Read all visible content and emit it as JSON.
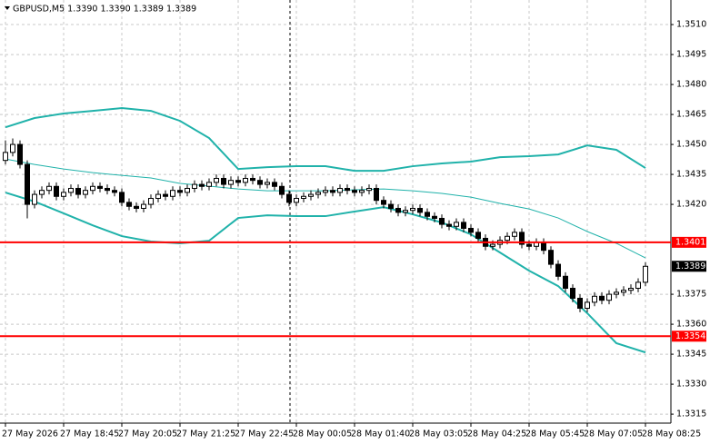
{
  "chart_data": {
    "type": "candlestick",
    "title": "GBPUSD,M5  1.3390 1.3390 1.3389 1.3389",
    "open": [
      1.3442,
      1.3446,
      1.345,
      1.344,
      1.342,
      1.3425,
      1.3427,
      1.3429,
      1.3424,
      1.3426,
      1.3428,
      1.3425,
      1.3427,
      1.3429,
      1.3428,
      1.3427,
      1.3426,
      1.3421,
      1.3419,
      1.3418,
      1.342,
      1.3423,
      1.3425,
      1.3424,
      1.3427,
      1.3426,
      1.3428,
      1.343,
      1.3429,
      1.3431,
      1.3433,
      1.343,
      1.3432,
      1.3431,
      1.3433,
      1.3432,
      1.343,
      1.3431,
      1.3429,
      1.3425,
      1.3421,
      1.3423,
      1.3424,
      1.3425,
      1.3426,
      1.3427,
      1.3426,
      1.3428,
      1.3427,
      1.3426,
      1.3427,
      1.3428,
      1.3422,
      1.342,
      1.3418,
      1.3416,
      1.3417,
      1.3418,
      1.3416,
      1.3414,
      1.3413,
      1.341,
      1.3409,
      1.3411,
      1.3408,
      1.3406,
      1.3403,
      1.3399,
      1.34,
      1.3402,
      1.3404,
      1.3406,
      1.34,
      1.3399,
      1.3401,
      1.3397,
      1.339,
      1.3384,
      1.3378,
      1.3373,
      1.3368,
      1.3371,
      1.3374,
      1.3372,
      1.3375,
      1.3376,
      1.3377,
      1.3378,
      1.3381
    ],
    "high": [
      1.3452,
      1.3453,
      1.3452,
      1.3442,
      1.3427,
      1.3429,
      1.3431,
      1.3431,
      1.3428,
      1.343,
      1.343,
      1.3429,
      1.3431,
      1.3431,
      1.343,
      1.3429,
      1.3428,
      1.3423,
      1.3421,
      1.3422,
      1.3425,
      1.3427,
      1.3427,
      1.3429,
      1.3429,
      1.343,
      1.3432,
      1.3432,
      1.3433,
      1.3435,
      1.3435,
      1.3434,
      1.3434,
      1.3435,
      1.3435,
      1.3434,
      1.3433,
      1.3433,
      1.3431,
      1.3427,
      1.3425,
      1.3426,
      1.3427,
      1.3428,
      1.3429,
      1.3429,
      1.343,
      1.343,
      1.3429,
      1.3429,
      1.343,
      1.343,
      1.3424,
      1.3422,
      1.342,
      1.3419,
      1.342,
      1.342,
      1.3418,
      1.3416,
      1.3415,
      1.3412,
      1.3413,
      1.3413,
      1.341,
      1.3408,
      1.3405,
      1.3402,
      1.3404,
      1.3406,
      1.3408,
      1.3408,
      1.3402,
      1.3403,
      1.3403,
      1.3399,
      1.3392,
      1.3386,
      1.338,
      1.3375,
      1.3373,
      1.3376,
      1.3376,
      1.3377,
      1.3378,
      1.3379,
      1.338,
      1.3383,
      1.3391
    ],
    "low": [
      1.344,
      1.3444,
      1.3438,
      1.3413,
      1.3418,
      1.3423,
      1.3425,
      1.3422,
      1.3422,
      1.3424,
      1.3423,
      1.3423,
      1.3425,
      1.3426,
      1.3425,
      1.3424,
      1.3419,
      1.3417,
      1.3416,
      1.3416,
      1.3418,
      1.3421,
      1.3422,
      1.3422,
      1.3424,
      1.3424,
      1.3426,
      1.3427,
      1.3427,
      1.3429,
      1.3428,
      1.3428,
      1.3429,
      1.3429,
      1.343,
      1.3428,
      1.3428,
      1.3427,
      1.3423,
      1.3419,
      1.3419,
      1.3421,
      1.3422,
      1.3423,
      1.3424,
      1.3424,
      1.3424,
      1.3425,
      1.3424,
      1.3424,
      1.3425,
      1.342,
      1.3418,
      1.3416,
      1.3414,
      1.3414,
      1.3415,
      1.3414,
      1.3412,
      1.3411,
      1.3408,
      1.3407,
      1.3407,
      1.3406,
      1.3404,
      1.3401,
      1.3397,
      1.3397,
      1.3398,
      1.34,
      1.3402,
      1.3398,
      1.3397,
      1.3397,
      1.3395,
      1.3388,
      1.3382,
      1.3376,
      1.3371,
      1.3366,
      1.3366,
      1.3369,
      1.337,
      1.337,
      1.3373,
      1.3374,
      1.3375,
      1.3376,
      1.3379
    ],
    "close": [
      1.3446,
      1.345,
      1.344,
      1.342,
      1.3425,
      1.3427,
      1.3429,
      1.3424,
      1.3426,
      1.3428,
      1.3425,
      1.3427,
      1.3429,
      1.3428,
      1.3427,
      1.3426,
      1.3421,
      1.3419,
      1.3418,
      1.342,
      1.3423,
      1.3425,
      1.3424,
      1.3427,
      1.3426,
      1.3428,
      1.343,
      1.3429,
      1.3431,
      1.3433,
      1.343,
      1.3432,
      1.3431,
      1.3433,
      1.3432,
      1.343,
      1.3431,
      1.3429,
      1.3425,
      1.3421,
      1.3423,
      1.3424,
      1.3425,
      1.3426,
      1.3427,
      1.3426,
      1.3428,
      1.3427,
      1.3426,
      1.3427,
      1.3428,
      1.3422,
      1.342,
      1.3418,
      1.3416,
      1.3417,
      1.3418,
      1.3416,
      1.3414,
      1.3413,
      1.341,
      1.3409,
      1.3411,
      1.3408,
      1.3406,
      1.3403,
      1.3399,
      1.34,
      1.3402,
      1.3404,
      1.3406,
      1.34,
      1.3399,
      1.3401,
      1.3397,
      1.339,
      1.3384,
      1.3378,
      1.3373,
      1.3368,
      1.3371,
      1.3374,
      1.3372,
      1.3375,
      1.3376,
      1.3377,
      1.3378,
      1.3381,
      1.3389
    ],
    "bull_color": "#ffffff",
    "bear_color": "#000000",
    "bands": [
      {
        "color": "#20b2aa",
        "width": 2,
        "x": [
          0,
          4,
          8,
          12,
          16,
          20,
          24,
          28,
          32,
          36,
          40,
          44,
          48,
          52,
          56,
          60,
          64,
          68,
          72,
          76,
          80,
          84,
          88
        ],
        "values": [
          1.34586,
          1.34632,
          1.34655,
          1.34668,
          1.34682,
          1.34668,
          1.34618,
          1.34532,
          1.34377,
          1.34386,
          1.34391,
          1.34391,
          1.34368,
          1.34368,
          1.34391,
          1.34405,
          1.34414,
          1.34436,
          1.34441,
          1.3445,
          1.34495,
          1.34473,
          1.34382
        ]
      },
      {
        "color": "#20b2aa",
        "width": 1,
        "x": [
          0,
          4,
          8,
          12,
          16,
          20,
          24,
          28,
          32,
          36,
          40,
          44,
          48,
          52,
          56,
          60,
          64,
          68,
          72,
          76,
          80,
          84,
          88
        ],
        "values": [
          1.34427,
          1.344,
          1.34377,
          1.34359,
          1.34345,
          1.34332,
          1.34305,
          1.34291,
          1.34277,
          1.34268,
          1.34268,
          1.34268,
          1.34273,
          1.34277,
          1.34268,
          1.34255,
          1.34236,
          1.34205,
          1.34177,
          1.34132,
          1.34064,
          1.34005,
          1.33932
        ]
      },
      {
        "color": "#20b2aa",
        "width": 2,
        "x": [
          0,
          4,
          8,
          12,
          16,
          20,
          24,
          28,
          32,
          36,
          40,
          44,
          48,
          52,
          56,
          60,
          64,
          68,
          72,
          76,
          80,
          84,
          88
        ],
        "values": [
          1.34259,
          1.34214,
          1.34155,
          1.34095,
          1.34041,
          1.34014,
          1.34005,
          1.34018,
          1.34132,
          1.34145,
          1.34141,
          1.34141,
          1.34164,
          1.34186,
          1.3415,
          1.34109,
          1.3405,
          1.33959,
          1.33868,
          1.33791,
          1.33655,
          1.33505,
          1.33459
        ]
      }
    ],
    "levels": [
      {
        "value": 1.3401,
        "color": "#ff0000"
      },
      {
        "value": 1.3354,
        "color": "#ff0000"
      }
    ],
    "last": 1.3389,
    "last_color": "#000000",
    "xlim": [
      -0.75,
      91.5
    ],
    "ylim": [
      1.33105,
      1.35223
    ],
    "xticks": [
      {
        "value": 0,
        "label": "27 May 2026"
      },
      {
        "value": 8,
        "label": "27 May 18:45"
      },
      {
        "value": 16,
        "label": "27 May 20:05"
      },
      {
        "value": 24,
        "label": "27 May 21:25"
      },
      {
        "value": 32,
        "label": "27 May 22:45"
      },
      {
        "value": 40,
        "label": "28 May 00:05"
      },
      {
        "value": 48,
        "label": "28 May 01:40"
      },
      {
        "value": 56,
        "label": "28 May 03:05"
      },
      {
        "value": 64,
        "label": "28 May 04:25"
      },
      {
        "value": 72,
        "label": "28 May 05:45"
      },
      {
        "value": 80,
        "label": "28 May 07:05"
      },
      {
        "value": 88,
        "label": "28 May 08:25"
      }
    ],
    "yticks": [
      {
        "value": 1.351,
        "label": "1.3510"
      },
      1.3495,
      {
        "value": 1.348,
        "label": "1.3480"
      },
      1.3465,
      {
        "value": 1.345,
        "label": "1.3450"
      },
      1.3435,
      {
        "value": 1.342,
        "label": "1.3420"
      },
      1.3375,
      {
        "value": 1.336,
        "label": "1.3360"
      },
      1.3345,
      {
        "value": 1.333,
        "label": "1.3330"
      },
      1.3315
    ],
    "grid": true
  }
}
